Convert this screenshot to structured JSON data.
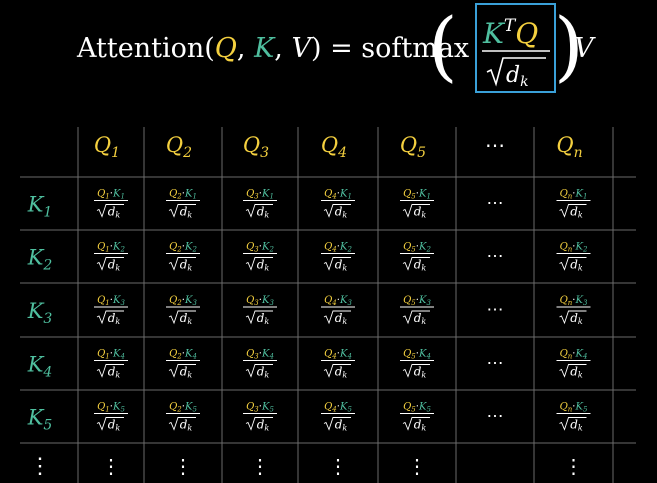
{
  "formula": {
    "lhs_name": "Attention",
    "lhs_args": [
      {
        "text": "Q",
        "color": "#f4d03f"
      },
      {
        "text": "K",
        "color": "#4fbf9f"
      },
      {
        "text": "V",
        "color": "#ffffff"
      }
    ],
    "equals": "=",
    "func": "softmax",
    "numerator": {
      "k": "K",
      "t": "T",
      "q": "Q"
    },
    "denominator": {
      "d": "d",
      "sub": "k"
    },
    "tail": "V"
  },
  "colors": {
    "query": "#f4d03f",
    "key": "#4fbf9f",
    "text": "#ffffff",
    "grid": "#6a6a6a",
    "highlight_box": "#3aa0d8",
    "background": "#000000"
  },
  "table": {
    "columns": [
      {
        "letter": "Q",
        "sub": "1",
        "ellipsis": false
      },
      {
        "letter": "Q",
        "sub": "2",
        "ellipsis": false
      },
      {
        "letter": "Q",
        "sub": "3",
        "ellipsis": false
      },
      {
        "letter": "Q",
        "sub": "4",
        "ellipsis": false
      },
      {
        "letter": "Q",
        "sub": "5",
        "ellipsis": false
      },
      {
        "letter": "",
        "sub": "",
        "ellipsis": true
      },
      {
        "letter": "Q",
        "sub": "n",
        "ellipsis": false
      }
    ],
    "rows": [
      {
        "letter": "K",
        "sub": "1",
        "ellipsis": false
      },
      {
        "letter": "K",
        "sub": "2",
        "ellipsis": false
      },
      {
        "letter": "K",
        "sub": "3",
        "ellipsis": false
      },
      {
        "letter": "K",
        "sub": "4",
        "ellipsis": false
      },
      {
        "letter": "K",
        "sub": "5",
        "ellipsis": false
      },
      {
        "letter": "",
        "sub": "",
        "ellipsis": true
      }
    ],
    "cell_operator": "·",
    "cell_denominator": {
      "d": "d",
      "sub": "k"
    },
    "ellipsis_h": "⋯",
    "ellipsis_v": "⋮"
  }
}
